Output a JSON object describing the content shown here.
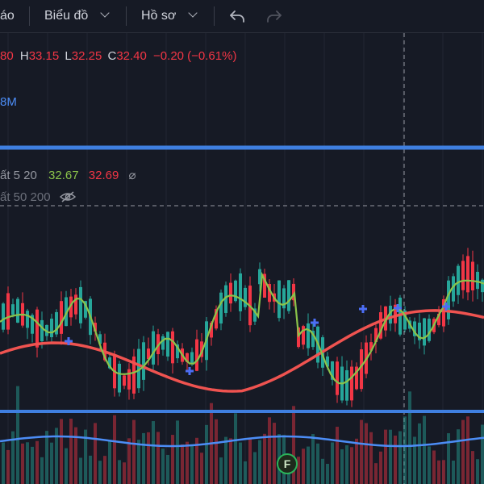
{
  "toolbar": {
    "item_alerts": "áo",
    "item_chart": "Biểu đồ",
    "item_profile": "Hồ sơ",
    "undo_icon": "undo-icon",
    "redo_icon": "redo-icon"
  },
  "ohlc": {
    "open_value": "80",
    "high_key": "H",
    "high_value": "33.15",
    "low_key": "L",
    "low_value": "32.25",
    "close_key": "C",
    "close_value": "32.40",
    "change": "−0.20 (−0.61%)"
  },
  "volume_label": "8M",
  "ma_indicator": {
    "name": "ất 5 20",
    "value_1": "32.67",
    "value_2": "32.69",
    "icon": "empty-set-icon"
  },
  "ma_indicator_2": {
    "name": "ất 50 200",
    "icon": "eye-hidden-icon"
  },
  "event_badge": "F",
  "colors": {
    "background": "#161a25",
    "up": "#26a69a",
    "down": "#f23645",
    "ma_fast": "#8bc34a",
    "ma_slow": "#ef5350",
    "horizontal_line": "#3f7fe0",
    "volume_ma": "#4c8df6"
  }
}
